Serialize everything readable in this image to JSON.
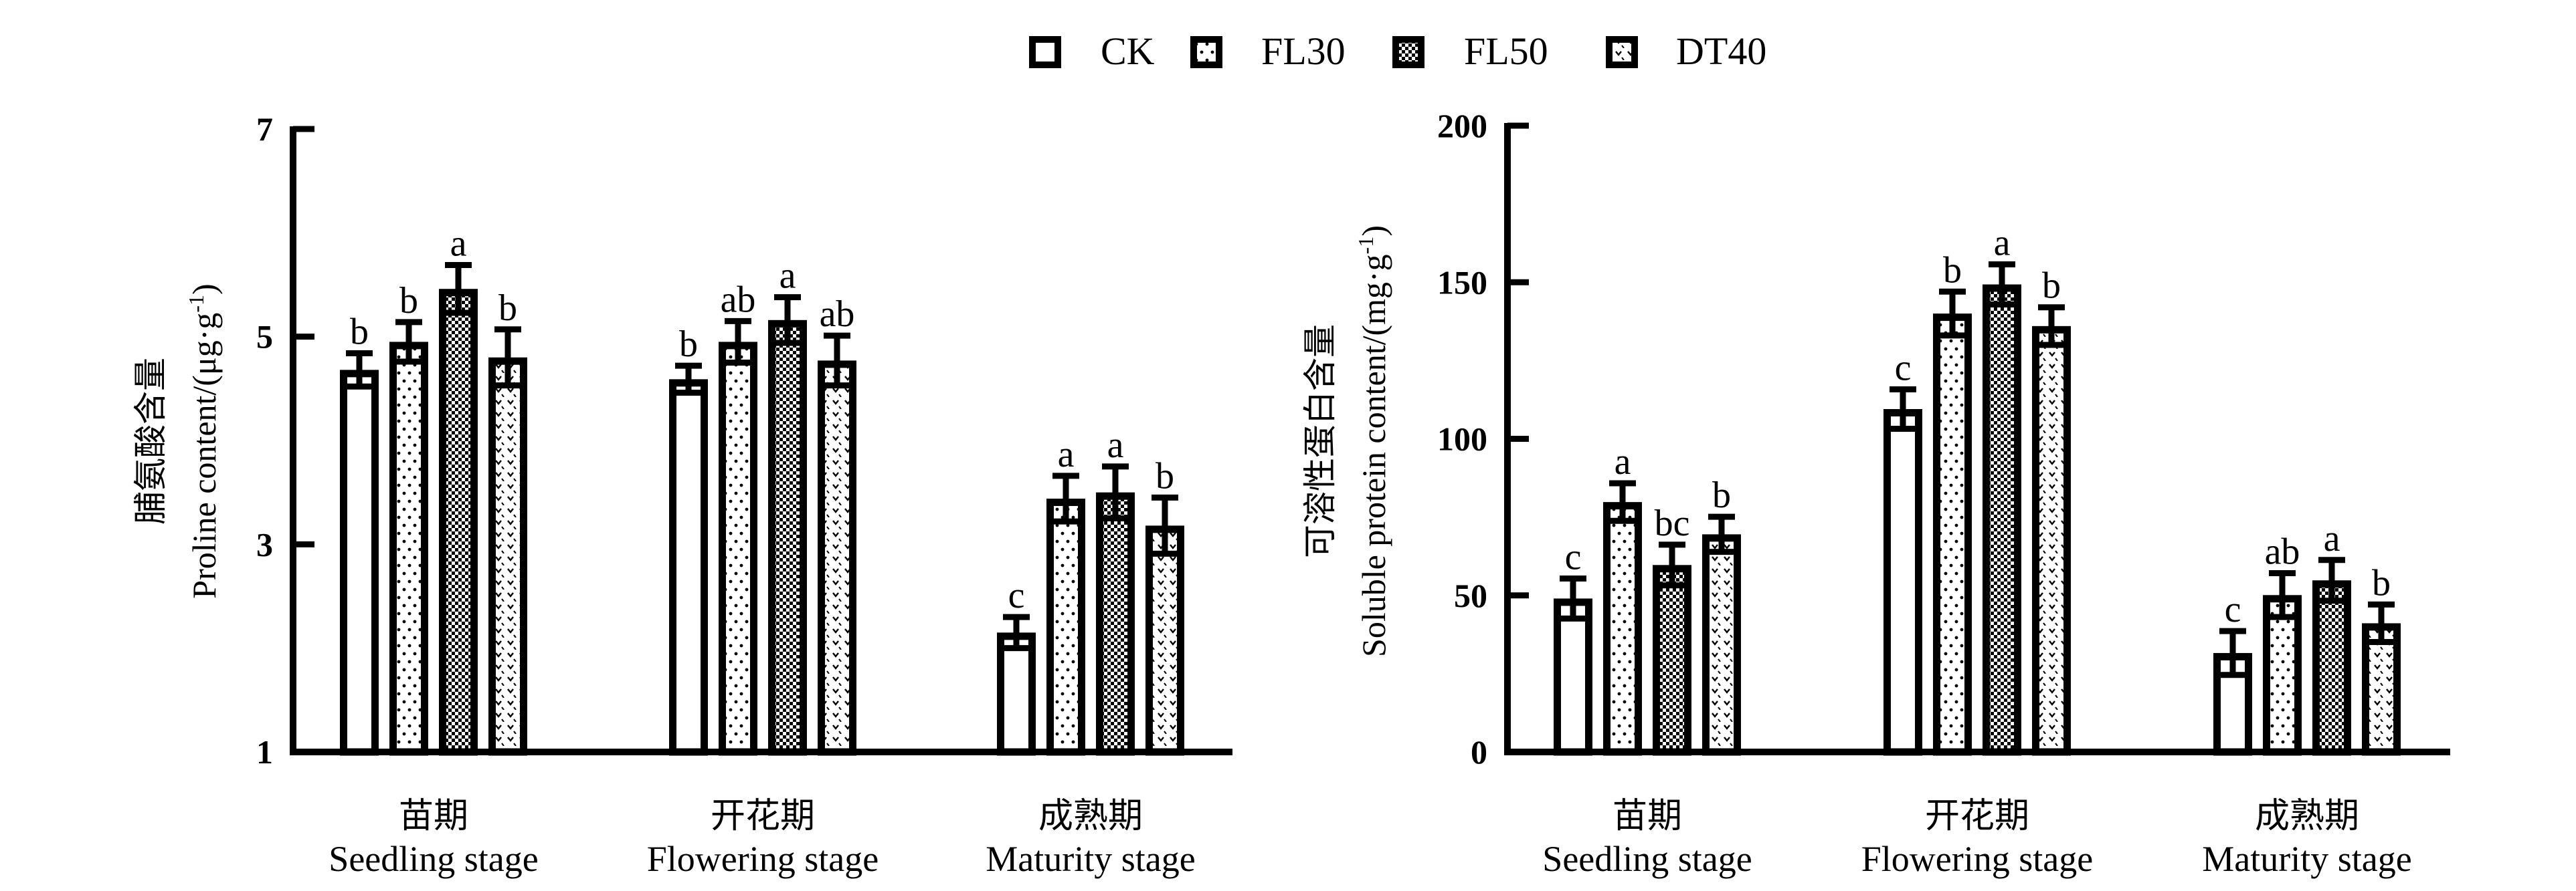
{
  "legend": {
    "position": "top-center",
    "entries": [
      {
        "name": "CK",
        "pattern": "blank"
      },
      {
        "name": "FL30",
        "pattern": "dots"
      },
      {
        "name": "FL50",
        "pattern": "checker"
      },
      {
        "name": "DT40",
        "pattern": "chevrons"
      }
    ]
  },
  "chart_data": [
    {
      "type": "bar",
      "title": "",
      "ylabel_cn": "脯氨酸含量",
      "ylabel_en": "Proline content/(μg·g",
      "ylabel_sup": "-1",
      "ylabel_close": ")",
      "ylim": [
        1,
        7
      ],
      "yticks": [
        1,
        3,
        5,
        7
      ],
      "grid": false,
      "categories": [
        {
          "cn": "苗期",
          "en": "Seedling stage"
        },
        {
          "cn": "开花期",
          "en": "Flowering stage"
        },
        {
          "cn": "成熟期",
          "en": "Maturity stage"
        }
      ],
      "series": [
        {
          "name": "CK",
          "values": [
            4.68,
            4.59,
            2.15
          ],
          "errors": [
            0.16,
            0.13,
            0.15
          ],
          "letters": [
            "b",
            "b",
            "c"
          ]
        },
        {
          "name": "FL30",
          "values": [
            4.95,
            4.95,
            3.44
          ],
          "errors": [
            0.19,
            0.2,
            0.22
          ],
          "letters": [
            "b",
            "ab",
            "a"
          ]
        },
        {
          "name": "FL50",
          "values": [
            5.46,
            5.16,
            3.5
          ],
          "errors": [
            0.23,
            0.22,
            0.25
          ],
          "letters": [
            "a",
            "a",
            "a"
          ]
        },
        {
          "name": "DT40",
          "values": [
            4.8,
            4.77,
            3.18
          ],
          "errors": [
            0.27,
            0.24,
            0.27
          ],
          "letters": [
            "b",
            "ab",
            "b"
          ]
        }
      ]
    },
    {
      "type": "bar",
      "title": "",
      "ylabel_cn": "可溶性蛋白含量",
      "ylabel_en": "Soluble protein content/(mg·g",
      "ylabel_sup": "-1",
      "ylabel_close": ")",
      "ylim": [
        0,
        200
      ],
      "yticks": [
        0,
        50,
        100,
        150,
        200
      ],
      "grid": false,
      "categories": [
        {
          "cn": "苗期",
          "en": "Seedling stage"
        },
        {
          "cn": "开花期",
          "en": "Flowering stage"
        },
        {
          "cn": "成熟期",
          "en": "Maturity stage"
        }
      ],
      "series": [
        {
          "name": "CK",
          "values": [
            49.0,
            109.5,
            31.6
          ],
          "errors": [
            6.4,
            6.3,
            7.0
          ],
          "letters": [
            "c",
            "c",
            "c"
          ]
        },
        {
          "name": "FL30",
          "values": [
            79.8,
            140.0,
            50.1
          ],
          "errors": [
            6.0,
            7.0,
            7.0
          ],
          "letters": [
            "a",
            "b",
            "ab"
          ]
        },
        {
          "name": "FL50",
          "values": [
            59.7,
            149.3,
            54.8
          ],
          "errors": [
            6.5,
            6.4,
            6.5
          ],
          "letters": [
            "bc",
            "a",
            "a"
          ]
        },
        {
          "name": "DT40",
          "values": [
            69.5,
            136.0,
            41.1
          ],
          "errors": [
            5.6,
            6.0,
            6.0
          ],
          "letters": [
            "b",
            "b",
            "b"
          ]
        }
      ]
    }
  ]
}
